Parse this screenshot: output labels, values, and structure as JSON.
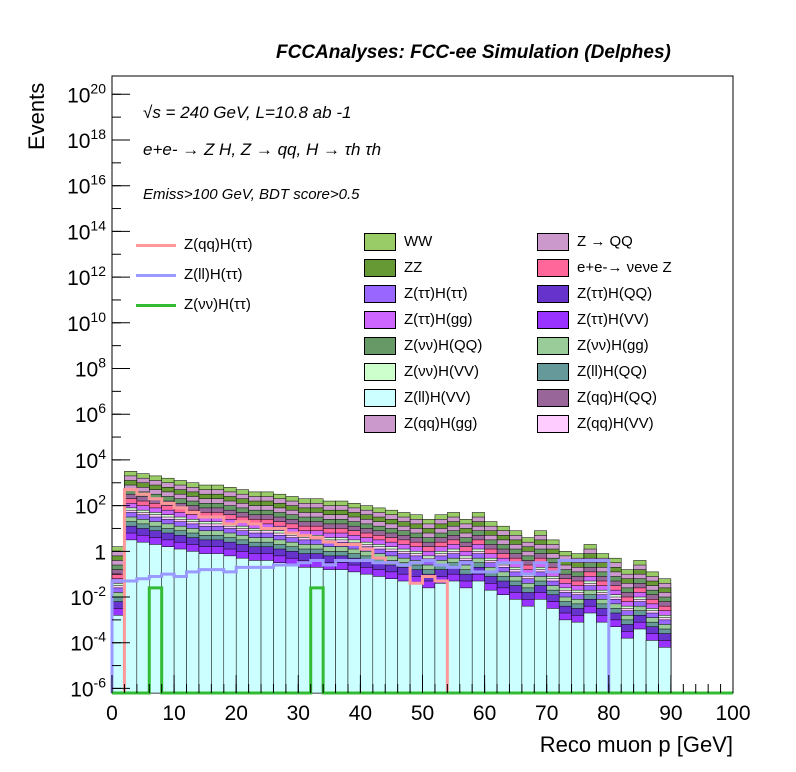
{
  "chart_data": {
    "type": "histogram",
    "title": "FCCAnalyses: FCC-ee Simulation (Delphes)",
    "xlabel": "Reco muon p [GeV]",
    "ylabel": "Events",
    "xlim": [
      0,
      100
    ],
    "ylim_log10": [
      -6.2,
      20.8
    ],
    "yscale": "log",
    "bin_width": 2,
    "x_ticks": [
      0,
      10,
      20,
      30,
      40,
      50,
      60,
      70,
      80,
      90,
      100
    ],
    "y_tick_exponents": [
      -6,
      -4,
      -2,
      0,
      2,
      4,
      6,
      8,
      10,
      12,
      14,
      16,
      18,
      20
    ],
    "annotations": {
      "line1": "√s = 240 GeV, L=10.8 ab -1",
      "line2": "e+e- → Z H, Z → qq, H → τh τh",
      "line3": "Emiss>100 GeV, BDT score>0.5"
    },
    "signals": [
      {
        "name": "Z(qq)H(ττ)",
        "color": "#ff9999",
        "log10_values": [
          -6.2,
          2.7,
          2.5,
          2.3,
          2.1,
          1.9,
          1.7,
          1.5,
          1.5,
          1.2,
          1.3,
          1.2,
          1.0,
          1.0,
          0.8,
          0.7,
          0.6,
          0.4,
          0.3,
          0.3,
          0.1,
          -0.3,
          -0.5,
          -0.6,
          -1.4,
          -1.1,
          -1.3,
          -6.2,
          -6.2,
          -6.2,
          -6.2,
          -6.2,
          -6.2,
          -6.2,
          -6.2,
          -6.2,
          -6.2,
          -6.2,
          -6.2,
          -6.2,
          -6.2,
          -6.2,
          -6.2,
          -6.2,
          -6.2,
          -6.2,
          -6.2,
          -6.2,
          -6.2,
          -6.2
        ]
      },
      {
        "name": "Z(ll)H(ττ)",
        "color": "#9999ff",
        "log10_values": [
          -1.3,
          -1.3,
          -1.2,
          -1.1,
          -1.0,
          -1.1,
          -0.9,
          -0.8,
          -0.8,
          -0.9,
          -0.7,
          -0.7,
          -0.7,
          -0.6,
          -0.6,
          -0.5,
          -0.4,
          -0.6,
          -0.4,
          -0.4,
          -0.4,
          -0.5,
          -0.5,
          -0.6,
          -0.5,
          -0.4,
          -0.6,
          -0.7,
          -0.5,
          -0.9,
          -0.9,
          -0.5,
          -0.5,
          -1.0,
          -0.5,
          -0.9,
          -0.4,
          -0.4,
          -0.4,
          -0.4,
          -6.2,
          -6.2,
          -6.2,
          -6.2,
          -6.2,
          -6.2,
          -6.2,
          -6.2,
          -6.2,
          -6.2
        ]
      },
      {
        "name": "Z(νν)H(ττ)",
        "color": "#33bb33",
        "log10_values": [
          -6.2,
          -6.2,
          -6.2,
          -1.6,
          -6.2,
          -6.2,
          -6.2,
          -6.2,
          -6.2,
          -6.2,
          -6.2,
          -6.2,
          -6.2,
          -6.2,
          -6.2,
          -6.2,
          -1.6,
          -6.2,
          -6.2,
          -6.2,
          -6.2,
          -6.2,
          -6.2,
          -6.2,
          -6.2,
          -6.2,
          -6.2,
          -6.2,
          -6.2,
          -6.2,
          -6.2,
          -6.2,
          -6.2,
          -6.2,
          -6.2,
          -6.2,
          -6.2,
          -6.2,
          -6.2,
          -6.2,
          -6.2,
          -6.2,
          -6.2,
          -6.2,
          -6.2,
          -6.2,
          -6.2,
          -6.2,
          -6.2,
          -6.2
        ]
      }
    ],
    "stack_total_log10": [
      0.2,
      3.5,
      3.4,
      3.3,
      3.2,
      3.1,
      3.0,
      2.9,
      2.9,
      2.8,
      2.7,
      2.6,
      2.6,
      2.5,
      2.4,
      2.3,
      2.3,
      2.2,
      2.2,
      2.1,
      2.0,
      1.9,
      1.8,
      1.7,
      1.6,
      1.4,
      1.6,
      1.7,
      1.4,
      1.7,
      1.3,
      1.1,
      0.9,
      0.6,
      0.9,
      0.5,
      0.0,
      -0.1,
      0.3,
      -0.1,
      -0.3,
      -0.8,
      -0.4,
      -0.9,
      -1.2,
      -6.2,
      -6.2,
      -6.2,
      -6.2,
      -6.2
    ],
    "stack_layers": [
      {
        "name": "Z(ll)H(VV)",
        "color": "#ccffff",
        "offset": -0.0
      },
      {
        "name": "Z(ττ)H(VV)",
        "color": "#9933ff",
        "offset": 0.3
      },
      {
        "name": "Z(ττ)H(QQ)",
        "color": "#6633cc",
        "offset": 0.6
      },
      {
        "name": "Z(ll)H(QQ)",
        "color": "#669999",
        "offset": 0.8
      },
      {
        "name": "Z(νν)H(gg)",
        "color": "#99cc99",
        "offset": 1.0
      },
      {
        "name": "Z(ττ)H(ττ)",
        "color": "#9966ff",
        "offset": 1.2
      },
      {
        "name": "Z(qq)H(VV)",
        "color": "#ffccff",
        "offset": 1.3
      },
      {
        "name": "Z(νν)H(VV)",
        "color": "#ccffcc",
        "offset": 1.4
      },
      {
        "name": "Z(ττ)H(gg)",
        "color": "#cc66ff",
        "offset": 1.6
      },
      {
        "name": "e+e-→ νeνe Z",
        "color": "#ff6699",
        "offset": 1.8
      },
      {
        "name": "Z(qq)H(QQ)",
        "color": "#996699",
        "offset": 2.0
      },
      {
        "name": "Z(νν)H(QQ)",
        "color": "#669966",
        "offset": 2.2
      },
      {
        "name": "Z(qq)H(gg)",
        "color": "#cc99cc",
        "offset": 2.4
      },
      {
        "name": "ZZ",
        "color": "#669933",
        "offset": 2.6
      },
      {
        "name": "Z → QQ",
        "color": "#cc99cc",
        "offset": 2.8
      },
      {
        "name": "WW",
        "color": "#99cc66",
        "offset": 3.0
      }
    ],
    "legend_lines": [
      "Z(qq)H(ττ)",
      "Z(ll)H(ττ)",
      "Z(νν)H(ττ)"
    ],
    "legend_boxes": [
      {
        "label": "WW",
        "color": "#99cc66"
      },
      {
        "label": "Z → QQ",
        "color": "#cc99cc"
      },
      {
        "label": "ZZ",
        "color": "#669933"
      },
      {
        "label": "e+e-→ νeνe Z",
        "color": "#ff6699"
      },
      {
        "label": "Z(ττ)H(ττ)",
        "color": "#9966ff"
      },
      {
        "label": "Z(ττ)H(QQ)",
        "color": "#6633cc"
      },
      {
        "label": "Z(ττ)H(gg)",
        "color": "#cc66ff"
      },
      {
        "label": "Z(ττ)H(VV)",
        "color": "#9933ff"
      },
      {
        "label": "Z(νν)H(QQ)",
        "color": "#669966"
      },
      {
        "label": "Z(νν)H(gg)",
        "color": "#99cc99"
      },
      {
        "label": "Z(νν)H(VV)",
        "color": "#ccffcc"
      },
      {
        "label": "Z(ll)H(QQ)",
        "color": "#669999"
      },
      {
        "label": "Z(ll)H(VV)",
        "color": "#ccffff"
      },
      {
        "label": "Z(qq)H(QQ)",
        "color": "#996699"
      },
      {
        "label": "Z(qq)H(gg)",
        "color": "#cc99cc"
      },
      {
        "label": "Z(qq)H(VV)",
        "color": "#ffccff"
      }
    ]
  }
}
